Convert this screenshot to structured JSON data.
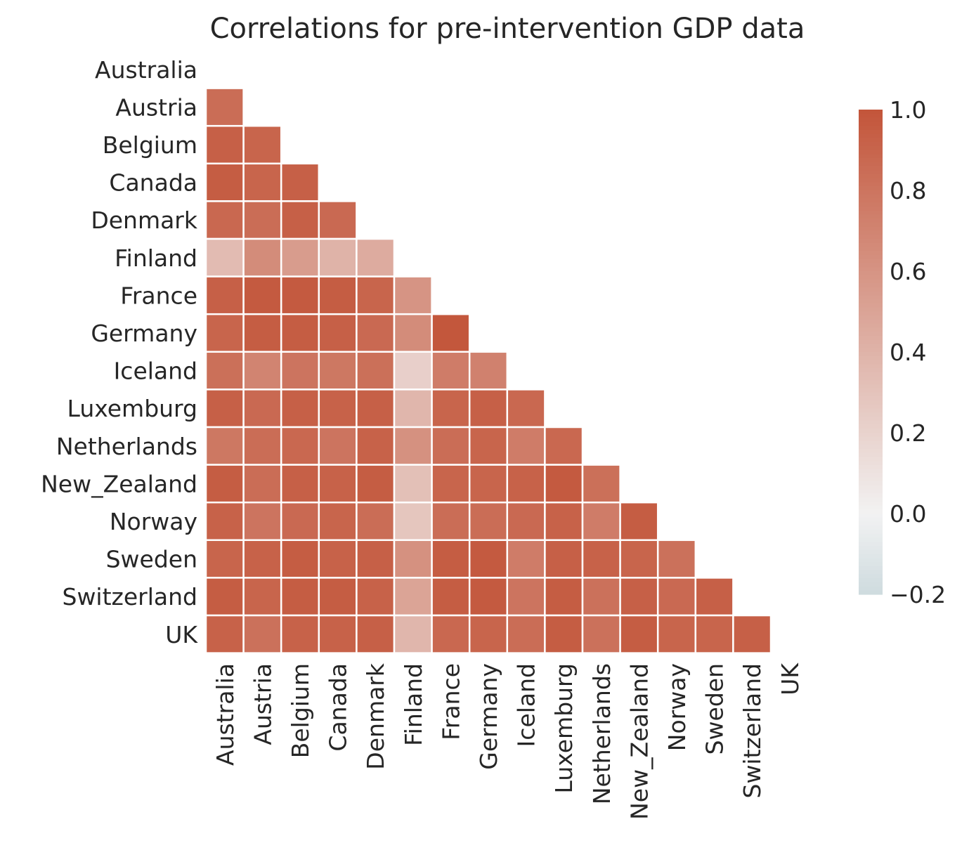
{
  "chart_data": {
    "type": "heatmap",
    "title": "Correlations for pre-intervention GDP data",
    "mask": "upper-triangle-including-diagonal",
    "labels": [
      "Australia",
      "Austria",
      "Belgium",
      "Canada",
      "Denmark",
      "Finland",
      "France",
      "Germany",
      "Iceland",
      "Luxemburg",
      "Netherlands",
      "New_Zealand",
      "Norway",
      "Sweden",
      "Switzerland",
      "UK"
    ],
    "lower_triangle_values": [
      [],
      [
        0.85
      ],
      [
        0.93,
        0.9
      ],
      [
        0.95,
        0.9,
        0.93
      ],
      [
        0.88,
        0.85,
        0.93,
        0.87
      ],
      [
        0.35,
        0.65,
        0.55,
        0.4,
        0.45
      ],
      [
        0.93,
        0.97,
        0.97,
        0.95,
        0.9,
        0.6
      ],
      [
        0.9,
        0.95,
        0.95,
        0.93,
        0.87,
        0.65,
        0.99
      ],
      [
        0.83,
        0.7,
        0.8,
        0.78,
        0.83,
        0.22,
        0.75,
        0.72
      ],
      [
        0.93,
        0.87,
        0.93,
        0.92,
        0.93,
        0.38,
        0.9,
        0.93,
        0.88
      ],
      [
        0.78,
        0.85,
        0.88,
        0.8,
        0.92,
        0.62,
        0.85,
        0.9,
        0.75,
        0.88
      ],
      [
        0.95,
        0.85,
        0.93,
        0.92,
        0.95,
        0.32,
        0.9,
        0.9,
        0.92,
        0.97,
        0.83
      ],
      [
        0.92,
        0.8,
        0.87,
        0.9,
        0.85,
        0.28,
        0.85,
        0.85,
        0.87,
        0.92,
        0.75,
        0.95
      ],
      [
        0.9,
        0.92,
        0.95,
        0.92,
        0.93,
        0.62,
        0.95,
        0.97,
        0.75,
        0.93,
        0.92,
        0.9,
        0.82
      ],
      [
        0.95,
        0.9,
        0.95,
        0.95,
        0.92,
        0.5,
        0.95,
        0.97,
        0.8,
        0.95,
        0.82,
        0.93,
        0.87,
        0.93
      ],
      [
        0.92,
        0.82,
        0.92,
        0.92,
        0.93,
        0.38,
        0.88,
        0.9,
        0.85,
        0.95,
        0.82,
        0.95,
        0.9,
        0.9,
        0.93
      ]
    ],
    "colorbar": {
      "range": [
        -0.2,
        1.0
      ],
      "center": 0.0,
      "tick_labels": [
        "1.0",
        "0.8",
        "0.6",
        "0.4",
        "0.2",
        "0.0",
        "−0.2"
      ],
      "tick_values": [
        1.0,
        0.8,
        0.6,
        0.4,
        0.2,
        0.0,
        -0.2
      ]
    },
    "colors": {
      "negative_end": "#3f7f93",
      "center": "#f2f2f2",
      "positive_end": "#c3553a",
      "cell_border": "#ffffff"
    }
  }
}
